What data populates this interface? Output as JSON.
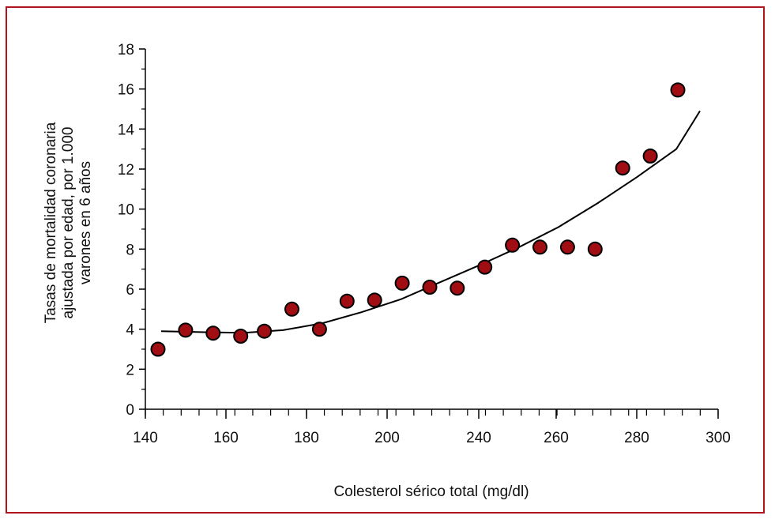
{
  "chart_data": {
    "type": "scatter",
    "title": "",
    "xlabel": "Colesterol sérico total (mg/dl)",
    "ylabel_lines": [
      "Tasas de mortalidad coronaria",
      "ajustada por edad, por 1.000",
      "varones en 6 años"
    ],
    "xlim": [
      140,
      300
    ],
    "ylim": [
      0,
      18
    ],
    "x_ticks": [
      140,
      160,
      180,
      200,
      240,
      260,
      280,
      300
    ],
    "x_tick_labels": [
      "140",
      "160",
      "180",
      "200",
      "240",
      "260",
      "280",
      "300"
    ],
    "y_ticks": [
      0,
      2,
      4,
      6,
      8,
      10,
      12,
      14,
      16,
      18
    ],
    "y_tick_labels": [
      "0",
      "2",
      "4",
      "6",
      "8",
      "10",
      "12",
      "14",
      "16",
      "18"
    ],
    "points": [
      {
        "x": 143,
        "y": 3.0
      },
      {
        "x": 150,
        "y": 3.95
      },
      {
        "x": 157,
        "y": 3.8
      },
      {
        "x": 164,
        "y": 3.65
      },
      {
        "x": 170,
        "y": 3.9
      },
      {
        "x": 177,
        "y": 5.0
      },
      {
        "x": 184,
        "y": 4.0
      },
      {
        "x": 191,
        "y": 5.4
      },
      {
        "x": 198,
        "y": 5.45
      },
      {
        "x": 205,
        "y": 6.3
      },
      {
        "x": 212,
        "y": 6.1
      },
      {
        "x": 219,
        "y": 6.05
      },
      {
        "x": 226,
        "y": 7.1
      },
      {
        "x": 233,
        "y": 8.2
      },
      {
        "x": 240,
        "y": 8.1
      },
      {
        "x": 247,
        "y": 8.1
      },
      {
        "x": 254,
        "y": 8.0
      },
      {
        "x": 261,
        "y": 12.05
      },
      {
        "x": 268,
        "y": 12.65
      },
      {
        "x": 275,
        "y": 15.95
      }
    ],
    "trend_curve": [
      {
        "x": 144,
        "y": 3.9
      },
      {
        "x": 155,
        "y": 3.85
      },
      {
        "x": 165,
        "y": 3.82
      },
      {
        "x": 175,
        "y": 3.95
      },
      {
        "x": 185,
        "y": 4.3
      },
      {
        "x": 195,
        "y": 4.85
      },
      {
        "x": 205,
        "y": 5.5
      },
      {
        "x": 215,
        "y": 6.35
      },
      {
        "x": 225,
        "y": 7.2
      },
      {
        "x": 235,
        "y": 8.1
      },
      {
        "x": 245,
        "y": 9.1
      },
      {
        "x": 255,
        "y": 10.3
      },
      {
        "x": 265,
        "y": 11.6
      },
      {
        "x": 275,
        "y": 13.0
      },
      {
        "x": 281,
        "y": 14.9
      }
    ],
    "grid": false,
    "colors": {
      "frame": "#b0141e",
      "point_fill": "#a00d12",
      "point_stroke": "#000000",
      "curve": "#000000",
      "axis": "#000000"
    }
  }
}
